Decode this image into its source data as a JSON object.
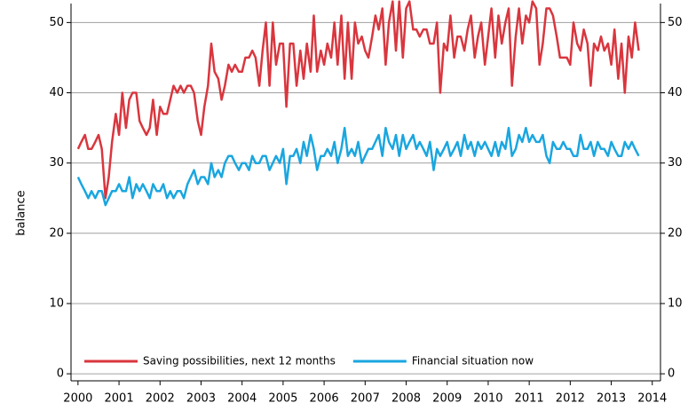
{
  "chart_data": {
    "type": "line",
    "y_label": "balance",
    "x": [
      2000,
      2000.08,
      2000.17,
      2000.25,
      2000.33,
      2000.42,
      2000.5,
      2000.58,
      2000.67,
      2000.75,
      2000.83,
      2000.92,
      2001,
      2001.08,
      2001.17,
      2001.25,
      2001.33,
      2001.42,
      2001.5,
      2001.58,
      2001.67,
      2001.75,
      2001.83,
      2001.92,
      2002,
      2002.08,
      2002.17,
      2002.25,
      2002.33,
      2002.42,
      2002.5,
      2002.58,
      2002.67,
      2002.75,
      2002.83,
      2002.92,
      2003,
      2003.08,
      2003.17,
      2003.25,
      2003.33,
      2003.42,
      2003.5,
      2003.58,
      2003.67,
      2003.75,
      2003.83,
      2003.92,
      2004,
      2004.08,
      2004.17,
      2004.25,
      2004.33,
      2004.42,
      2004.5,
      2004.58,
      2004.67,
      2004.75,
      2004.83,
      2004.92,
      2005,
      2005.08,
      2005.17,
      2005.25,
      2005.33,
      2005.42,
      2005.5,
      2005.58,
      2005.67,
      2005.75,
      2005.83,
      2005.92,
      2006,
      2006.08,
      2006.17,
      2006.25,
      2006.33,
      2006.42,
      2006.5,
      2006.58,
      2006.67,
      2006.75,
      2006.83,
      2006.92,
      2007,
      2007.08,
      2007.17,
      2007.25,
      2007.33,
      2007.42,
      2007.5,
      2007.58,
      2007.67,
      2007.75,
      2007.83,
      2007.92,
      2008,
      2008.08,
      2008.17,
      2008.25,
      2008.33,
      2008.42,
      2008.5,
      2008.58,
      2008.67,
      2008.75,
      2008.83,
      2008.92,
      2009,
      2009.08,
      2009.17,
      2009.25,
      2009.33,
      2009.42,
      2009.5,
      2009.58,
      2009.67,
      2009.75,
      2009.83,
      2009.92,
      2010,
      2010.08,
      2010.17,
      2010.25,
      2010.33,
      2010.42,
      2010.5,
      2010.58,
      2010.67,
      2010.75,
      2010.83,
      2010.92,
      2011,
      2011.08,
      2011.17,
      2011.25,
      2011.33,
      2011.42,
      2011.5,
      2011.58,
      2011.67,
      2011.75,
      2011.83,
      2011.92,
      2012,
      2012.08,
      2012.17,
      2012.25,
      2012.33,
      2012.42,
      2012.5,
      2012.58,
      2012.67,
      2012.75,
      2012.83,
      2012.92,
      2013,
      2013.08,
      2013.17,
      2013.25,
      2013.33,
      2013.42,
      2013.5,
      2013.58,
      2013.67
    ],
    "series": [
      {
        "name": "Saving possibilities, next 12 months",
        "color": "#d9363e",
        "values": [
          32,
          33,
          34,
          32,
          32,
          33,
          34,
          32,
          25,
          28,
          33,
          37,
          34,
          40,
          35,
          39,
          40,
          40,
          36,
          35,
          34,
          35,
          39,
          34,
          38,
          37,
          37,
          39,
          41,
          40,
          41,
          40,
          41,
          41,
          40,
          36,
          34,
          38,
          41,
          47,
          43,
          42,
          39,
          41,
          44,
          43,
          44,
          43,
          43,
          45,
          45,
          46,
          45,
          41,
          46,
          50,
          41,
          50,
          44,
          47,
          47,
          38,
          47,
          47,
          41,
          46,
          42,
          47,
          43,
          51,
          43,
          46,
          44,
          47,
          45,
          50,
          44,
          51,
          42,
          50,
          42,
          50,
          47,
          48,
          46,
          45,
          48,
          51,
          49,
          52,
          44,
          50,
          53,
          46,
          53,
          45,
          52,
          53,
          49,
          49,
          48,
          49,
          49,
          47,
          47,
          50,
          40,
          47,
          46,
          51,
          45,
          48,
          48,
          46,
          49,
          51,
          45,
          48,
          50,
          44,
          48,
          52,
          45,
          51,
          47,
          50,
          52,
          41,
          48,
          52,
          47,
          51,
          50,
          53,
          52,
          44,
          47,
          52,
          52,
          51,
          48,
          45,
          45,
          45,
          44,
          50,
          47,
          46,
          49,
          47,
          41,
          47,
          46,
          48,
          46,
          47,
          44,
          49,
          42,
          47,
          40,
          48,
          45,
          50,
          46
        ]
      },
      {
        "name": "Financial situation now",
        "color": "#1aa6df",
        "values": [
          28,
          27,
          26,
          25,
          26,
          25,
          26,
          26,
          24,
          25,
          26,
          26,
          27,
          26,
          26,
          28,
          25,
          27,
          26,
          27,
          26,
          25,
          27,
          26,
          26,
          27,
          25,
          26,
          25,
          26,
          26,
          25,
          27,
          28,
          29,
          27,
          28,
          28,
          27,
          30,
          28,
          29,
          28,
          30,
          31,
          31,
          30,
          29,
          30,
          30,
          29,
          31,
          30,
          30,
          31,
          31,
          29,
          30,
          31,
          30,
          32,
          27,
          31,
          31,
          32,
          30,
          33,
          31,
          34,
          32,
          29,
          31,
          31,
          32,
          31,
          33,
          30,
          32,
          35,
          31,
          32,
          31,
          33,
          30,
          31,
          32,
          32,
          33,
          34,
          31,
          35,
          33,
          32,
          34,
          31,
          34,
          32,
          33,
          34,
          32,
          33,
          32,
          31,
          33,
          29,
          32,
          31,
          32,
          33,
          31,
          32,
          33,
          31,
          34,
          32,
          33,
          31,
          33,
          32,
          33,
          32,
          31,
          33,
          31,
          33,
          32,
          35,
          31,
          32,
          34,
          33,
          35,
          33,
          34,
          33,
          33,
          34,
          31,
          30,
          33,
          32,
          32,
          33,
          32,
          32,
          31,
          31,
          34,
          32,
          32,
          33,
          31,
          33,
          32,
          32,
          31,
          33,
          32,
          31,
          31,
          33,
          32,
          33,
          32,
          31
        ]
      }
    ],
    "xlim": [
      1999.83,
      2014.2
    ],
    "xticks": [
      2000,
      2001,
      2002,
      2003,
      2004,
      2005,
      2006,
      2007,
      2008,
      2009,
      2010,
      2011,
      2012,
      2013,
      2014
    ],
    "ylim": [
      -1,
      52.7
    ],
    "yticks": [
      0,
      10,
      20,
      30,
      40,
      50
    ],
    "grid": true,
    "legend": "lower left"
  }
}
